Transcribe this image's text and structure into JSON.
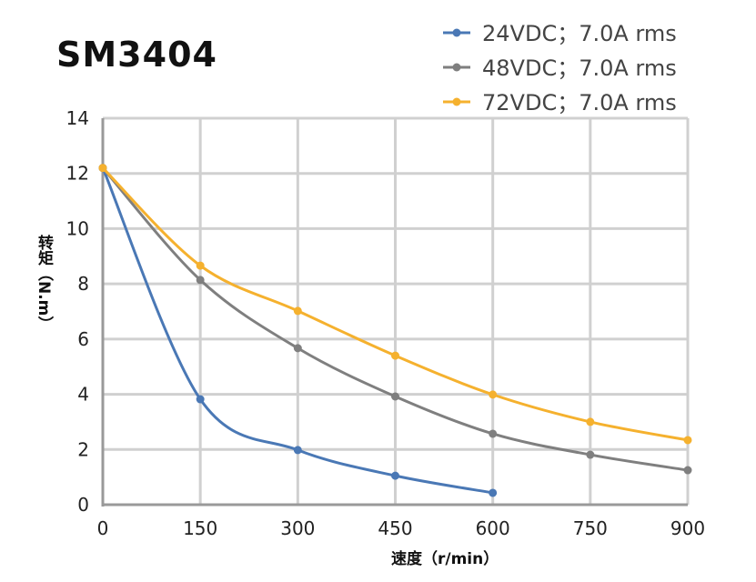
{
  "chart_data": {
    "type": "line",
    "title": "SM3404",
    "xlabel": "速度（r/min）",
    "ylabel": "转矩（N.m）",
    "xlim": [
      0,
      900
    ],
    "ylim": [
      0,
      14
    ],
    "xticks": [
      0,
      150,
      300,
      450,
      600,
      750,
      900
    ],
    "yticks": [
      0,
      2,
      4,
      6,
      8,
      10,
      12,
      14
    ],
    "grid": true,
    "legend_position": "top-right",
    "series": [
      {
        "name": "24VDC；7.0A rms",
        "color": "#4a78b5",
        "x": [
          0,
          150,
          300,
          450,
          600
        ],
        "y": [
          12.2,
          3.82,
          1.98,
          1.05,
          0.43
        ]
      },
      {
        "name": "48VDC；7.0A rms",
        "color": "#7f7f7f",
        "x": [
          0,
          150,
          300,
          450,
          600,
          750,
          900
        ],
        "y": [
          12.2,
          8.14,
          5.67,
          3.92,
          2.57,
          1.81,
          1.25
        ]
      },
      {
        "name": "72VDC；7.0A rms",
        "color": "#f5b12e",
        "x": [
          0,
          150,
          300,
          450,
          600,
          750,
          900
        ],
        "y": [
          12.2,
          8.66,
          7.02,
          5.4,
          3.99,
          3.0,
          2.34
        ]
      }
    ]
  }
}
